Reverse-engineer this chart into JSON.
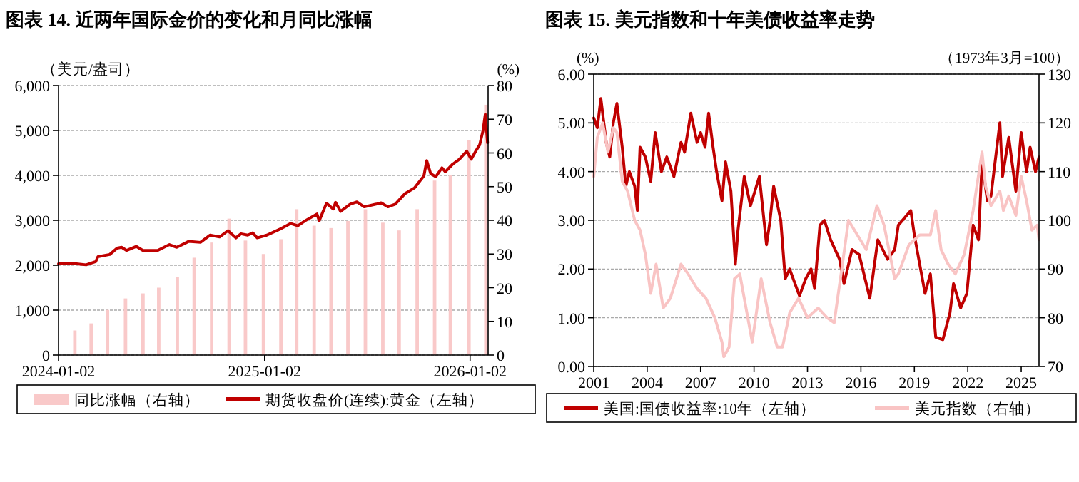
{
  "chart_data": [
    {
      "type": "line",
      "title": "图表 14. 近两年国际金价的变化和月同比涨幅",
      "ylabel": "（美元/盎司）",
      "y2label": "(%)",
      "xlim": [
        "2024-01-02",
        "2026-02-03"
      ],
      "xticks": [
        "2024-01-02",
        "2025-01-02",
        "2026-01-02"
      ],
      "ylim": [
        0,
        6000
      ],
      "yticks": [
        0,
        {
          "value": 1000,
          "label": "1,000"
        },
        {
          "value": 2000,
          "label": "2,000"
        },
        {
          "value": 3000,
          "label": "3,000"
        },
        {
          "value": 4000,
          "label": "4,000"
        },
        {
          "value": 5000,
          "label": "5,000"
        },
        {
          "value": 6000,
          "label": "6,000"
        }
      ],
      "y2lim": [
        0,
        80
      ],
      "y2ticks": [
        0,
        10,
        20,
        30,
        40,
        50,
        60,
        70,
        80
      ],
      "grid": "y",
      "legend": "bottom",
      "series": [
        {
          "name": "同比涨幅（右轴）",
          "type": "bar",
          "axis": "y2",
          "color": "#f9c9c9",
          "x": [
            "2024-01-31",
            "2024-02-29",
            "2024-03-29",
            "2024-04-30",
            "2024-05-31",
            "2024-06-28",
            "2024-07-31",
            "2024-08-30",
            "2024-09-30",
            "2024-10-31",
            "2024-11-29",
            "2024-12-31",
            "2025-01-31",
            "2025-02-28",
            "2025-03-31",
            "2025-04-30",
            "2025-05-30",
            "2025-06-30",
            "2025-07-31",
            "2025-08-29",
            "2025-09-30",
            "2025-10-31",
            "2025-11-28",
            "2025-12-31",
            "2026-01-30"
          ],
          "values": [
            7.3,
            9.4,
            13.4,
            16.8,
            18.3,
            20,
            23.1,
            28.9,
            33.4,
            40.5,
            34,
            30,
            34.4,
            43.3,
            38.4,
            37.7,
            39.8,
            43.3,
            39.3,
            37,
            43.3,
            51.8,
            53.5,
            63.8,
            74.3
          ]
        },
        {
          "name": "期货收盘价(连续):黄金（左轴）",
          "axis": "y",
          "color": "#c00000",
          "x": [
            "2024-01-02",
            "2024-02-03",
            "2024-02-20",
            "2024-03-08",
            "2024-03-12",
            "2024-04-02",
            "2024-04-15",
            "2024-04-23",
            "2024-05-02",
            "2024-05-19",
            "2024-05-31",
            "2024-06-26",
            "2024-07-17",
            "2024-07-30",
            "2024-08-20",
            "2024-09-10",
            "2024-09-27",
            "2024-10-14",
            "2024-10-29",
            "2024-11-12",
            "2024-11-21",
            "2024-12-03",
            "2024-12-12",
            "2024-12-20",
            "2025-01-06",
            "2025-02-01",
            "2025-02-17",
            "2025-03-02",
            "2025-03-15",
            "2025-04-05",
            "2025-04-09",
            "2025-04-22",
            "2025-05-04",
            "2025-05-08",
            "2025-05-17",
            "2025-06-03",
            "2025-06-15",
            "2025-06-28",
            "2025-07-19",
            "2025-07-28",
            "2025-08-09",
            "2025-08-22",
            "2025-09-08",
            "2025-09-25",
            "2025-10-12",
            "2025-10-17",
            "2025-10-24",
            "2025-11-02",
            "2025-11-13",
            "2025-11-19",
            "2025-12-02",
            "2025-12-14",
            "2025-12-27",
            "2026-01-04",
            "2026-01-12",
            "2026-01-19",
            "2026-01-25",
            "2026-01-29",
            "2026-02-02"
          ],
          "values": [
            2030,
            2030,
            2010,
            2080,
            2190,
            2240,
            2380,
            2400,
            2330,
            2420,
            2330,
            2330,
            2460,
            2400,
            2530,
            2510,
            2670,
            2630,
            2770,
            2610,
            2700,
            2670,
            2720,
            2610,
            2670,
            2820,
            2930,
            2880,
            2990,
            3140,
            2990,
            3380,
            3250,
            3400,
            3200,
            3360,
            3410,
            3300,
            3360,
            3390,
            3300,
            3360,
            3590,
            3720,
            3990,
            4330,
            4040,
            3970,
            4170,
            4080,
            4250,
            4360,
            4540,
            4360,
            4540,
            4680,
            5000,
            5360,
            4730
          ]
        }
      ]
    },
    {
      "type": "line",
      "title": "图表 15. 美元指数和十年美债收益率走势",
      "ylabel": "(%)",
      "y2label": "（1973年3月=100）",
      "xlim": [
        2001,
        2026
      ],
      "xticks": [
        2001,
        2004,
        2007,
        2010,
        2013,
        2016,
        2019,
        2022,
        2025
      ],
      "ylim": [
        0,
        6
      ],
      "yticks": [
        {
          "value": 0,
          "label": "0.00"
        },
        {
          "value": 1,
          "label": "1.00"
        },
        {
          "value": 2,
          "label": "2.00"
        },
        {
          "value": 3,
          "label": "3.00"
        },
        {
          "value": 4,
          "label": "4.00"
        },
        {
          "value": 5,
          "label": "5.00"
        },
        {
          "value": 6,
          "label": "6.00"
        }
      ],
      "y2lim": [
        70,
        130
      ],
      "y2ticks": [
        70,
        80,
        90,
        100,
        110,
        120,
        130
      ],
      "grid": "y",
      "legend": "bottom",
      "series": [
        {
          "name": "美国:国债收益率:10年（左轴）",
          "axis": "y",
          "color": "#c00000",
          "x": [
            2001.0,
            2001.2,
            2001.4,
            2001.7,
            2001.9,
            2002.1,
            2002.3,
            2002.6,
            2002.8,
            2003.0,
            2003.3,
            2003.45,
            2003.6,
            2003.9,
            2004.2,
            2004.45,
            2004.8,
            2005.1,
            2005.5,
            2005.9,
            2006.1,
            2006.45,
            2006.8,
            2007.0,
            2007.25,
            2007.45,
            2007.7,
            2007.9,
            2008.2,
            2008.4,
            2008.7,
            2008.95,
            2009.1,
            2009.45,
            2009.8,
            2010.3,
            2010.7,
            2010.9,
            2011.1,
            2011.5,
            2011.75,
            2012.0,
            2012.55,
            2012.9,
            2013.2,
            2013.4,
            2013.7,
            2013.95,
            2014.3,
            2014.8,
            2015.05,
            2015.5,
            2015.9,
            2016.5,
            2016.95,
            2017.5,
            2017.9,
            2018.1,
            2018.8,
            2019.0,
            2019.6,
            2019.9,
            2020.2,
            2020.6,
            2021.0,
            2021.2,
            2021.6,
            2021.95,
            2022.3,
            2022.6,
            2022.8,
            2023.1,
            2023.3,
            2023.8,
            2023.95,
            2024.3,
            2024.7,
            2025.0,
            2025.3,
            2025.5,
            2025.8,
            2026.0
          ],
          "values": [
            5.1,
            4.9,
            5.5,
            4.6,
            4.3,
            5.0,
            5.4,
            4.5,
            3.7,
            4.0,
            3.7,
            3.2,
            4.5,
            4.3,
            3.8,
            4.8,
            4.0,
            4.3,
            3.9,
            4.6,
            4.4,
            5.2,
            4.6,
            4.8,
            4.5,
            5.2,
            4.5,
            4.0,
            3.4,
            4.2,
            3.6,
            2.1,
            2.8,
            3.9,
            3.3,
            3.9,
            2.5,
            3.0,
            3.7,
            3.0,
            1.8,
            2.0,
            1.45,
            1.8,
            2.0,
            1.6,
            2.9,
            3.0,
            2.6,
            2.2,
            1.7,
            2.4,
            2.3,
            1.4,
            2.6,
            2.2,
            2.4,
            2.9,
            3.2,
            2.7,
            1.5,
            1.9,
            0.6,
            0.55,
            1.1,
            1.7,
            1.2,
            1.5,
            2.9,
            2.6,
            4.2,
            3.4,
            3.5,
            5.0,
            3.9,
            4.7,
            3.6,
            4.8,
            4.0,
            4.5,
            4.0,
            4.3
          ]
        },
        {
          "name": "美元指数（右轴）",
          "axis": "y2",
          "color": "#f9c4c4",
          "x": [
            2001.0,
            2001.2,
            2001.5,
            2001.8,
            2002.1,
            2002.3,
            2002.6,
            2002.9,
            2003.3,
            2003.6,
            2003.9,
            2004.2,
            2004.5,
            2004.9,
            2005.3,
            2005.9,
            2006.3,
            2006.8,
            2007.3,
            2007.8,
            2008.2,
            2008.3,
            2008.6,
            2008.9,
            2009.2,
            2009.9,
            2010.4,
            2010.9,
            2011.3,
            2011.6,
            2012.0,
            2012.5,
            2013.0,
            2013.6,
            2014.1,
            2014.5,
            2015.0,
            2015.3,
            2015.8,
            2016.3,
            2016.9,
            2017.3,
            2017.9,
            2018.1,
            2018.7,
            2019.3,
            2019.9,
            2020.2,
            2020.5,
            2020.9,
            2021.3,
            2021.8,
            2022.3,
            2022.8,
            2023.0,
            2023.3,
            2023.8,
            2024.0,
            2024.3,
            2024.7,
            2025.0,
            2025.3,
            2025.6,
            2025.9,
            2026.0
          ],
          "values": [
            109,
            117,
            120,
            114,
            119,
            118,
            108,
            106,
            100,
            98,
            93,
            85,
            91,
            82,
            84,
            91,
            89,
            86,
            84,
            80,
            75,
            72,
            74,
            88,
            89,
            75,
            88,
            79,
            74,
            74,
            81,
            84,
            80,
            82,
            80,
            79,
            92,
            100,
            97,
            94,
            103,
            99,
            88,
            89,
            95,
            97,
            97,
            102,
            94,
            91,
            89,
            93,
            102,
            114,
            107,
            103,
            106,
            102,
            105,
            101,
            109,
            104,
            98,
            99,
            96
          ]
        }
      ]
    }
  ]
}
